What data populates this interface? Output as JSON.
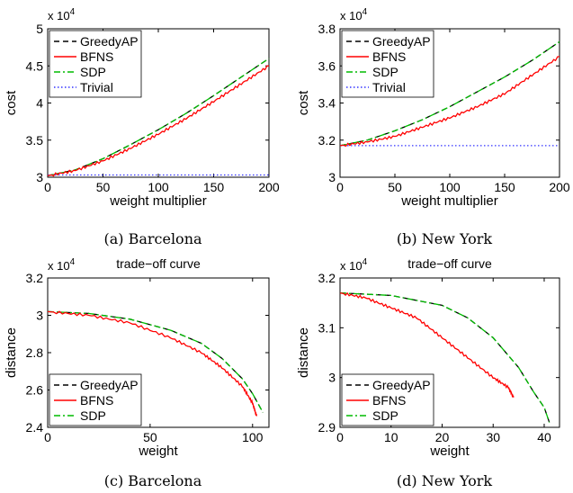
{
  "chart_data": [
    {
      "type": "line",
      "caption": "(a) Barcelona",
      "title": "",
      "xlabel": "weight multiplier",
      "ylabel": "cost",
      "multiplier": "x 10",
      "multiplier_exp": "4",
      "xlim": [
        0,
        200
      ],
      "ylim": [
        3.0,
        5.0
      ],
      "xticks": [
        0,
        50,
        100,
        150,
        200
      ],
      "yticks": [
        3,
        3.5,
        4,
        4.5,
        5
      ],
      "xtick_labels": [
        "0",
        "50",
        "100",
        "150",
        "200"
      ],
      "ytick_labels": [
        "3",
        "3.5",
        "4",
        "4.5",
        "5"
      ],
      "legend_position": "top-left",
      "series": [
        {
          "name": "GreedyAP",
          "color": "#000000",
          "style": "dashed",
          "x": [
            0,
            25,
            50,
            75,
            100,
            125,
            150,
            175,
            200
          ],
          "y": [
            3.02,
            3.1,
            3.25,
            3.44,
            3.64,
            3.86,
            4.1,
            4.35,
            4.6
          ]
        },
        {
          "name": "BFNS",
          "color": "#ff0000",
          "style": "solid",
          "noisy": true,
          "x": [
            0,
            25,
            50,
            75,
            100,
            125,
            150,
            175,
            200
          ],
          "y": [
            3.02,
            3.09,
            3.22,
            3.39,
            3.58,
            3.79,
            4.02,
            4.26,
            4.5
          ]
        },
        {
          "name": "SDP",
          "color": "#00bb00",
          "style": "dashdot",
          "x": [
            0,
            25,
            50,
            75,
            100,
            125,
            150,
            175,
            200
          ],
          "y": [
            3.02,
            3.1,
            3.25,
            3.44,
            3.64,
            3.86,
            4.1,
            4.35,
            4.6
          ]
        },
        {
          "name": "Trivial",
          "color": "#3333ff",
          "style": "dotted",
          "x": [
            0,
            200
          ],
          "y": [
            3.03,
            3.03
          ]
        }
      ]
    },
    {
      "type": "line",
      "caption": "(b) New York",
      "title": "",
      "xlabel": "weight multiplier",
      "ylabel": "cost",
      "multiplier": "x 10",
      "multiplier_exp": "4",
      "xlim": [
        0,
        200
      ],
      "ylim": [
        3.0,
        3.8
      ],
      "xticks": [
        0,
        50,
        100,
        150,
        200
      ],
      "yticks": [
        3.0,
        3.2,
        3.4,
        3.6,
        3.8
      ],
      "xtick_labels": [
        "0",
        "50",
        "100",
        "150",
        "200"
      ],
      "ytick_labels": [
        "3",
        "3.2",
        "3.4",
        "3.6",
        "3.8"
      ],
      "legend_position": "top-left",
      "series": [
        {
          "name": "GreedyAP",
          "color": "#000000",
          "style": "dashed",
          "x": [
            0,
            25,
            50,
            75,
            100,
            125,
            150,
            175,
            200
          ],
          "y": [
            3.17,
            3.2,
            3.25,
            3.31,
            3.38,
            3.46,
            3.54,
            3.63,
            3.73
          ]
        },
        {
          "name": "BFNS",
          "color": "#ff0000",
          "style": "solid",
          "noisy": true,
          "x": [
            0,
            25,
            50,
            75,
            100,
            125,
            150,
            175,
            200
          ],
          "y": [
            3.17,
            3.19,
            3.22,
            3.27,
            3.32,
            3.38,
            3.45,
            3.55,
            3.65
          ]
        },
        {
          "name": "SDP",
          "color": "#00bb00",
          "style": "dashdot",
          "x": [
            0,
            25,
            50,
            75,
            100,
            125,
            150,
            175,
            200
          ],
          "y": [
            3.17,
            3.2,
            3.25,
            3.31,
            3.38,
            3.46,
            3.54,
            3.63,
            3.73
          ]
        },
        {
          "name": "Trivial",
          "color": "#3333ff",
          "style": "dotted",
          "x": [
            0,
            200
          ],
          "y": [
            3.17,
            3.17
          ]
        }
      ]
    },
    {
      "type": "line",
      "caption": "(c) Barcelona",
      "title": "trade−off curve",
      "xlabel": "weight",
      "ylabel": "distance",
      "multiplier": "x 10",
      "multiplier_exp": "4",
      "xlim": [
        0,
        108
      ],
      "ylim": [
        2.4,
        3.2
      ],
      "xticks": [
        0,
        50,
        100
      ],
      "yticks": [
        2.4,
        2.6,
        2.8,
        3.0,
        3.2
      ],
      "xtick_labels": [
        "0",
        "50",
        "100"
      ],
      "ytick_labels": [
        "2.4",
        "2.6",
        "2.8",
        "3",
        "3.2"
      ],
      "legend_position": "bottom-left",
      "series": [
        {
          "name": "GreedyAP",
          "color": "#000000",
          "style": "dashed",
          "x": [
            0,
            20,
            40,
            60,
            75,
            85,
            95,
            100,
            105
          ],
          "y": [
            3.02,
            3.01,
            2.98,
            2.92,
            2.85,
            2.77,
            2.66,
            2.58,
            2.48
          ]
        },
        {
          "name": "BFNS",
          "color": "#ff0000",
          "style": "solid",
          "noisy": true,
          "x": [
            0,
            20,
            40,
            60,
            75,
            85,
            95,
            100,
            102
          ],
          "y": [
            3.02,
            3.0,
            2.96,
            2.88,
            2.8,
            2.72,
            2.62,
            2.53,
            2.46
          ]
        },
        {
          "name": "SDP",
          "color": "#00bb00",
          "style": "dashdot",
          "x": [
            0,
            20,
            40,
            60,
            75,
            85,
            95,
            100,
            105
          ],
          "y": [
            3.02,
            3.01,
            2.98,
            2.92,
            2.85,
            2.77,
            2.66,
            2.58,
            2.48
          ]
        }
      ]
    },
    {
      "type": "line",
      "caption": "(d) New York",
      "title": "trade−off curve",
      "xlabel": "weight",
      "ylabel": "distance",
      "multiplier": "x 10",
      "multiplier_exp": "4",
      "xlim": [
        0,
        43
      ],
      "ylim": [
        2.9,
        3.2
      ],
      "xticks": [
        0,
        10,
        20,
        30,
        40
      ],
      "yticks": [
        2.9,
        3.0,
        3.1,
        3.2
      ],
      "xtick_labels": [
        "0",
        "10",
        "20",
        "30",
        "40"
      ],
      "ytick_labels": [
        "2.9",
        "3",
        "3.1",
        "3.2"
      ],
      "legend_position": "bottom-left",
      "series": [
        {
          "name": "GreedyAP",
          "color": "#000000",
          "style": "dashed",
          "x": [
            0,
            10,
            20,
            25,
            30,
            35,
            38,
            40,
            41
          ],
          "y": [
            3.17,
            3.165,
            3.145,
            3.12,
            3.08,
            3.02,
            2.97,
            2.94,
            2.91
          ]
        },
        {
          "name": "BFNS",
          "color": "#ff0000",
          "style": "solid",
          "noisy": true,
          "x": [
            0,
            5,
            10,
            15,
            20,
            25,
            30,
            33,
            34
          ],
          "y": [
            3.17,
            3.16,
            3.14,
            3.12,
            3.08,
            3.04,
            3.0,
            2.98,
            2.96
          ]
        },
        {
          "name": "SDP",
          "color": "#00bb00",
          "style": "dashdot",
          "x": [
            0,
            10,
            20,
            25,
            30,
            35,
            38,
            40,
            41
          ],
          "y": [
            3.17,
            3.165,
            3.145,
            3.12,
            3.08,
            3.02,
            2.97,
            2.94,
            2.91
          ]
        }
      ]
    }
  ]
}
